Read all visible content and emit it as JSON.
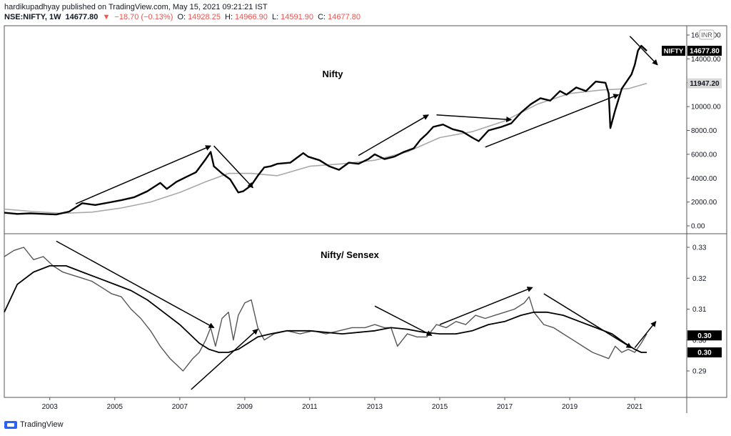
{
  "header": {
    "published": "hardikupadhyay published on TradingView.com, May 15, 2021 09:21:21 IST",
    "symbol": "NSE:NIFTY, 1W",
    "last": "14677.80",
    "change": "−18.70 (−0.13%)",
    "o_label": "O:",
    "o": "14928.25",
    "h_label": "H:",
    "h": "14966.90",
    "l_label": "L:",
    "l": "14591.90",
    "c_label": "C:",
    "c": "14677.80",
    "down_arrow": "▼"
  },
  "footer": {
    "brand": "TradingView"
  },
  "colors": {
    "price": "#000000",
    "ma": "#a8a8a8",
    "ratio": "#555555",
    "accent_red": "#ef5350",
    "axis": "#555555"
  },
  "chart_data": [
    {
      "type": "line",
      "title": "Nifty",
      "currency_badge": "INR",
      "ylim": [
        0,
        16000
      ],
      "y_ticks": [
        "0.00",
        "2000.00",
        "4000.00",
        "6000.00",
        "8000.00",
        "10000.00",
        "12000.00",
        "14000.00",
        "16000.00"
      ],
      "price_label_symbol": "NIFTY",
      "price_label_value": "14677.80",
      "ma_label_value": "11947.20",
      "series": [
        {
          "x": [
            2001.6,
            2002.0,
            2002.4,
            2002.8,
            2003.2,
            2003.6,
            2004.0,
            2004.4,
            2004.8,
            2005.2,
            2005.6,
            2006.0,
            2006.4,
            2006.6,
            2006.9,
            2007.2,
            2007.5,
            2007.8,
            2007.95,
            2008.05,
            2008.3,
            2008.55,
            2008.8,
            2008.95,
            2009.2,
            2009.4,
            2009.6,
            2009.8,
            2010.0,
            2010.4,
            2010.8,
            2010.95,
            2011.3,
            2011.6,
            2011.9,
            2012.2,
            2012.5,
            2012.8,
            2013.0,
            2013.3,
            2013.6,
            2013.9,
            2014.2,
            2014.4,
            2014.6,
            2014.8,
            2015.1,
            2015.4,
            2015.7,
            2016.0,
            2016.2,
            2016.5,
            2016.9,
            2017.2,
            2017.5,
            2017.8,
            2018.1,
            2018.4,
            2018.7,
            2018.9,
            2019.2,
            2019.5,
            2019.8,
            2020.1,
            2020.2,
            2020.25,
            2020.4,
            2020.6,
            2020.9,
            2021.0,
            2021.1,
            2021.2,
            2021.37
          ],
          "values": [
            1100,
            1000,
            1050,
            1000,
            950,
            1200,
            1900,
            1750,
            1950,
            2150,
            2400,
            2900,
            3600,
            3100,
            3700,
            4100,
            4500,
            5600,
            6200,
            5000,
            4400,
            3900,
            2800,
            2900,
            3400,
            4200,
            4900,
            5000,
            5200,
            5300,
            6100,
            5800,
            5500,
            5000,
            4700,
            5300,
            5200,
            5600,
            6000,
            5600,
            5800,
            6200,
            6500,
            7200,
            7700,
            8300,
            8500,
            8100,
            7900,
            7400,
            7100,
            8000,
            8300,
            8600,
            9500,
            10200,
            10700,
            10500,
            11300,
            11000,
            11600,
            11300,
            12100,
            12000,
            11100,
            8200,
            9700,
            11500,
            12700,
            13500,
            14700,
            15100,
            14677.8
          ]
        },
        {
          "x": [
            2001.6,
            2002.5,
            2003.4,
            2004.3,
            2005.2,
            2006.1,
            2007.0,
            2007.8,
            2008.5,
            2009.2,
            2010.0,
            2011.0,
            2012.0,
            2013.0,
            2014.0,
            2015.0,
            2016.0,
            2017.0,
            2018.0,
            2019.0,
            2020.0,
            2020.8,
            2021.37
          ],
          "values": [
            1400,
            1200,
            1050,
            1150,
            1500,
            2000,
            2800,
            3700,
            4400,
            4400,
            4200,
            5000,
            5200,
            5500,
            6200,
            7400,
            7900,
            8800,
            10200,
            11100,
            11400,
            11500,
            11947.2
          ]
        }
      ],
      "arrows": [
        {
          "from": [
            2003.8,
            1850
          ],
          "to": [
            2007.95,
            6700
          ]
        },
        {
          "from": [
            2008.05,
            6700
          ],
          "to": [
            2009.25,
            3200
          ]
        },
        {
          "from": [
            2012.5,
            5900
          ],
          "to": [
            2014.65,
            9300
          ]
        },
        {
          "from": [
            2014.9,
            9300
          ],
          "to": [
            2017.2,
            8900
          ]
        },
        {
          "from": [
            2016.4,
            6600
          ],
          "to": [
            2020.5,
            11000
          ]
        },
        {
          "from": [
            2020.85,
            15900
          ],
          "to": [
            2021.7,
            13500
          ]
        }
      ]
    },
    {
      "type": "line",
      "title": "Nifty/ Sensex",
      "ylim": [
        0.284,
        0.334
      ],
      "y_ticks": [
        "0.29",
        "0.30",
        "0.31",
        "0.32",
        "0.33"
      ],
      "y_tick_values": [
        0.29,
        0.3,
        0.31,
        0.32,
        0.33
      ],
      "price_label_value": "0.30",
      "ma_label_value": "0.30",
      "xlim": [
        2001.6,
        2022.6
      ],
      "x_ticks": [
        "2003",
        "2005",
        "2007",
        "2009",
        "2011",
        "2013",
        "2015",
        "2017",
        "2019",
        "2021"
      ],
      "x_tick_values": [
        2003,
        2005,
        2007,
        2009,
        2011,
        2013,
        2015,
        2017,
        2019,
        2021
      ],
      "series": [
        {
          "x": [
            2001.6,
            2001.9,
            2002.2,
            2002.5,
            2002.8,
            2003.1,
            2003.4,
            2003.7,
            2004.0,
            2004.3,
            2004.6,
            2004.9,
            2005.2,
            2005.5,
            2005.8,
            2006.1,
            2006.4,
            2006.7,
            2006.9,
            2007.1,
            2007.4,
            2007.6,
            2007.8,
            2007.95,
            2008.1,
            2008.3,
            2008.5,
            2008.65,
            2008.8,
            2009.0,
            2009.2,
            2009.4,
            2009.6,
            2009.9,
            2010.3,
            2010.7,
            2011.1,
            2011.5,
            2011.9,
            2012.3,
            2012.7,
            2013.0,
            2013.3,
            2013.5,
            2013.7,
            2014.0,
            2014.3,
            2014.6,
            2014.9,
            2015.2,
            2015.5,
            2015.8,
            2016.1,
            2016.4,
            2016.7,
            2017.0,
            2017.3,
            2017.6,
            2017.75,
            2017.9,
            2018.2,
            2018.5,
            2018.8,
            2019.1,
            2019.4,
            2019.7,
            2019.95,
            2020.2,
            2020.4,
            2020.6,
            2020.8,
            2021.0,
            2021.2,
            2021.37
          ],
          "values": [
            0.327,
            0.329,
            0.33,
            0.326,
            0.327,
            0.324,
            0.322,
            0.321,
            0.32,
            0.319,
            0.317,
            0.315,
            0.314,
            0.31,
            0.307,
            0.303,
            0.298,
            0.294,
            0.292,
            0.29,
            0.294,
            0.296,
            0.3,
            0.304,
            0.298,
            0.307,
            0.309,
            0.3,
            0.308,
            0.312,
            0.313,
            0.304,
            0.3,
            0.302,
            0.303,
            0.302,
            0.303,
            0.302,
            0.303,
            0.304,
            0.304,
            0.305,
            0.304,
            0.304,
            0.298,
            0.302,
            0.301,
            0.301,
            0.305,
            0.304,
            0.306,
            0.305,
            0.308,
            0.307,
            0.308,
            0.309,
            0.31,
            0.312,
            0.314,
            0.309,
            0.305,
            0.304,
            0.302,
            0.3,
            0.298,
            0.296,
            0.295,
            0.294,
            0.298,
            0.296,
            0.297,
            0.296,
            0.299,
            0.302
          ]
        },
        {
          "x": [
            2001.6,
            2002.0,
            2002.5,
            2003.0,
            2003.5,
            2004.0,
            2004.5,
            2005.0,
            2005.5,
            2006.0,
            2006.5,
            2007.0,
            2007.3,
            2007.6,
            2007.9,
            2008.2,
            2008.5,
            2008.8,
            2009.1,
            2009.4,
            2009.8,
            2010.3,
            2011.0,
            2012.0,
            2013.0,
            2013.5,
            2014.0,
            2014.5,
            2015.0,
            2015.5,
            2016.0,
            2016.5,
            2017.0,
            2017.5,
            2017.9,
            2018.3,
            2018.8,
            2019.3,
            2019.8,
            2020.3,
            2020.7,
            2021.0,
            2021.2,
            2021.37
          ],
          "values": [
            0.309,
            0.318,
            0.322,
            0.324,
            0.324,
            0.322,
            0.32,
            0.318,
            0.316,
            0.313,
            0.309,
            0.305,
            0.302,
            0.299,
            0.297,
            0.296,
            0.296,
            0.297,
            0.299,
            0.301,
            0.302,
            0.303,
            0.303,
            0.302,
            0.303,
            0.304,
            0.3035,
            0.3025,
            0.302,
            0.302,
            0.303,
            0.305,
            0.306,
            0.308,
            0.309,
            0.309,
            0.308,
            0.306,
            0.304,
            0.302,
            0.299,
            0.297,
            0.296,
            0.296
          ]
        }
      ],
      "arrows": [
        {
          "from": [
            2003.2,
            0.332
          ],
          "to": [
            2008.05,
            0.304
          ]
        },
        {
          "from": [
            2007.35,
            0.284
          ],
          "to": [
            2009.4,
            0.3035
          ]
        },
        {
          "from": [
            2013.0,
            0.311
          ],
          "to": [
            2014.75,
            0.3015
          ]
        },
        {
          "from": [
            2015.0,
            0.305
          ],
          "to": [
            2017.85,
            0.317
          ]
        },
        {
          "from": [
            2018.2,
            0.315
          ],
          "to": [
            2020.9,
            0.2975
          ]
        },
        {
          "from": [
            2021.0,
            0.2975
          ],
          "to": [
            2021.65,
            0.306
          ]
        }
      ]
    }
  ]
}
